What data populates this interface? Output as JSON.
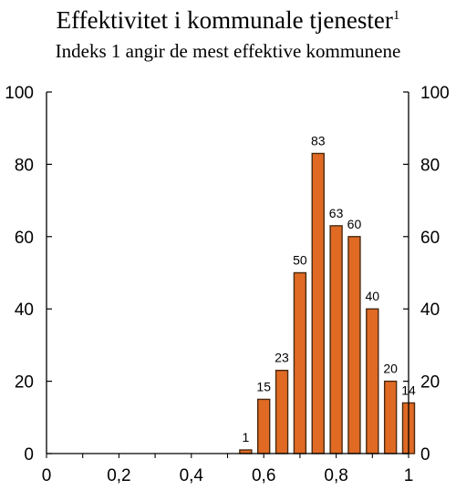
{
  "title": "Effektivitet i kommunale tjenester",
  "title_footnote": "1",
  "subtitle": "Indeks 1 angir de mest effektive kommunene",
  "colors": {
    "bar_fill": "#E06A24",
    "bar_stroke": "#4A2A10",
    "axis": "#000000"
  },
  "chart_data": {
    "type": "bar",
    "title": "Effektivitet i kommunale tjenester",
    "subtitle": "Indeks 1 angir de mest effektive kommunene",
    "xlim": [
      0,
      1
    ],
    "ylim": [
      0,
      100
    ],
    "x_ticks": [
      0,
      0.2,
      0.4,
      0.6,
      0.8,
      1
    ],
    "x_tick_labels": [
      "0",
      "0,2",
      "0,4",
      "0,6",
      "0,8",
      "1"
    ],
    "y_ticks": [
      0,
      20,
      40,
      60,
      80,
      100
    ],
    "y_tick_labels": [
      "0",
      "20",
      "40",
      "60",
      "80",
      "100"
    ],
    "right_axis": true,
    "grid": false,
    "bars": [
      {
        "x": 0.55,
        "value": 1
      },
      {
        "x": 0.6,
        "value": 15
      },
      {
        "x": 0.65,
        "value": 23
      },
      {
        "x": 0.7,
        "value": 50
      },
      {
        "x": 0.75,
        "value": 83
      },
      {
        "x": 0.8,
        "value": 63
      },
      {
        "x": 0.85,
        "value": 60
      },
      {
        "x": 0.9,
        "value": 40
      },
      {
        "x": 0.95,
        "value": 20
      },
      {
        "x": 1.0,
        "value": 14
      }
    ]
  }
}
